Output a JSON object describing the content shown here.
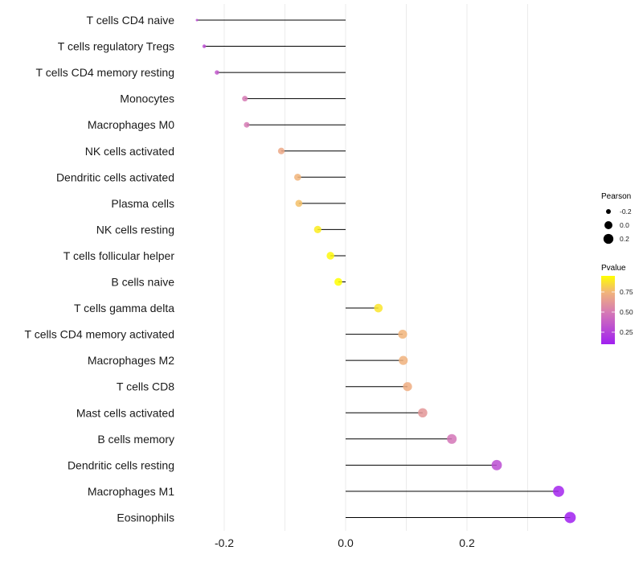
{
  "chart_data": {
    "type": "lollipop",
    "title": "",
    "xlabel": "",
    "ylabel": "",
    "xlim": [
      -0.27,
      0.38
    ],
    "x_ticks": [
      -0.2,
      0.0,
      0.2
    ],
    "x_tick_labels": [
      "-0.2",
      "0.0",
      "0.2"
    ],
    "grid": true,
    "categories": [
      "T cells CD4 naive",
      "T cells regulatory  Tregs",
      "T cells CD4 memory resting",
      "Monocytes",
      "Macrophages M0",
      "NK cells activated",
      "Dendritic cells activated",
      "Plasma cells",
      "NK cells resting",
      "T cells follicular helper",
      "B cells naive",
      "T cells gamma delta",
      "T cells CD4 memory activated",
      "Macrophages M2",
      "T cells CD8",
      "Mast cells activated",
      "B cells memory",
      "Dendritic cells resting",
      "Macrophages M1",
      "Eosinophils"
    ],
    "pearson": [
      -0.245,
      -0.233,
      -0.212,
      -0.166,
      -0.163,
      -0.106,
      -0.079,
      -0.077,
      -0.046,
      -0.025,
      -0.012,
      0.054,
      0.094,
      0.095,
      0.102,
      0.127,
      0.175,
      0.249,
      0.351,
      0.37
    ],
    "pvalue": [
      0.3,
      0.3,
      0.35,
      0.5,
      0.5,
      0.7,
      0.75,
      0.78,
      0.9,
      0.93,
      0.95,
      0.88,
      0.75,
      0.74,
      0.72,
      0.62,
      0.48,
      0.3,
      0.12,
      0.1
    ],
    "legend": {
      "size_title": "Pearson",
      "size_values": [
        -0.2,
        0.0,
        0.2
      ],
      "size_labels": [
        "-0.2",
        "0.0",
        "0.2"
      ],
      "color_title": "Pvalue",
      "color_range": [
        0.1,
        0.95
      ],
      "color_ticks": [
        0.25,
        0.5,
        0.75
      ],
      "color_labels": [
        "0.25",
        "0.50",
        "0.75"
      ],
      "placement": "right"
    },
    "colors": {
      "low": "#a020f0",
      "mid": "#d67ab4",
      "high_mid": "#f1b47a",
      "high": "#ffff00"
    }
  }
}
